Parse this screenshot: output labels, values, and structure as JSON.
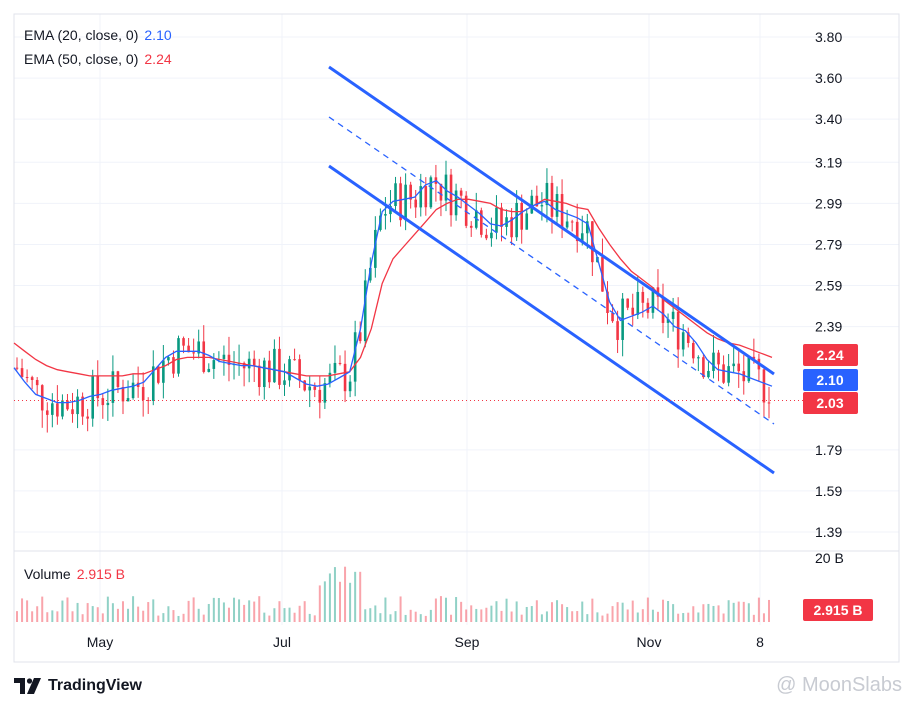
{
  "chart_data": {
    "type": "candlestick",
    "price_axis": {
      "ticks": [
        "3.80",
        "3.60",
        "3.40",
        "3.19",
        "2.99",
        "2.79",
        "2.59",
        "2.39",
        "1.79",
        "1.59",
        "1.39"
      ],
      "range": [
        1.29,
        3.87
      ]
    },
    "time_axis": {
      "labels": [
        "May",
        "Jul",
        "Sep",
        "Nov",
        "8"
      ]
    },
    "indicators": [
      {
        "name": "EMA (20, close, 0)",
        "value": "2.10",
        "color": "#2962ff"
      },
      {
        "name": "EMA (50, close, 0)",
        "value": "2.24",
        "color": "#f23645"
      }
    ],
    "last_price": "2.03",
    "price_badges": [
      {
        "value": "2.24",
        "color": "#f23645"
      },
      {
        "value": "2.10",
        "color": "#2962ff"
      },
      {
        "value": "2.03",
        "color": "#f23645"
      }
    ],
    "volume": {
      "label": "Volume",
      "value": "2.915 B",
      "axis_top": "20 B",
      "badge": "2.915 B",
      "color": "#f23645"
    },
    "channel": {
      "color": "#2962ff"
    },
    "up_color": "#089981",
    "down_color": "#f23645",
    "ema20": [
      2.19,
      2.12,
      2.06,
      2.04,
      2.02,
      2.02,
      2.03,
      2.05,
      2.06,
      2.08,
      2.09,
      2.1,
      2.12,
      2.18,
      2.24,
      2.27,
      2.27,
      2.27,
      2.25,
      2.22,
      2.21,
      2.2,
      2.2,
      2.19,
      2.18,
      2.17,
      2.14,
      2.11,
      2.1,
      2.11,
      2.14,
      2.17,
      2.38,
      2.7,
      2.95,
      3.0,
      3.01,
      3.02,
      3.08,
      3.1,
      3.05,
      3.02,
      2.98,
      2.94,
      2.89,
      2.88,
      2.91,
      2.95,
      2.98,
      3.0,
      2.96,
      2.94,
      2.92,
      2.89,
      2.7,
      2.51,
      2.42,
      2.44,
      2.46,
      2.49,
      2.45,
      2.39,
      2.37,
      2.31,
      2.23,
      2.18,
      2.17,
      2.16,
      2.14,
      2.12,
      2.1
    ],
    "ema50": [
      2.31,
      2.27,
      2.23,
      2.2,
      2.18,
      2.17,
      2.16,
      2.15,
      2.15,
      2.15,
      2.15,
      2.16,
      2.16,
      2.18,
      2.2,
      2.23,
      2.24,
      2.24,
      2.24,
      2.23,
      2.22,
      2.21,
      2.2,
      2.19,
      2.18,
      2.17,
      2.16,
      2.15,
      2.15,
      2.15,
      2.16,
      2.17,
      2.24,
      2.38,
      2.6,
      2.72,
      2.78,
      2.84,
      2.9,
      2.96,
      2.99,
      3.01,
      3.01,
      3.0,
      2.99,
      2.96,
      2.95,
      2.95,
      2.98,
      3.01,
      3.0,
      2.99,
      2.97,
      2.96,
      2.87,
      2.79,
      2.72,
      2.66,
      2.62,
      2.58,
      2.52,
      2.48,
      2.44,
      2.4,
      2.36,
      2.33,
      2.31,
      2.3,
      2.28,
      2.26,
      2.24
    ]
  },
  "brand": "TradingView",
  "watermark": "@ MoonSlabs"
}
